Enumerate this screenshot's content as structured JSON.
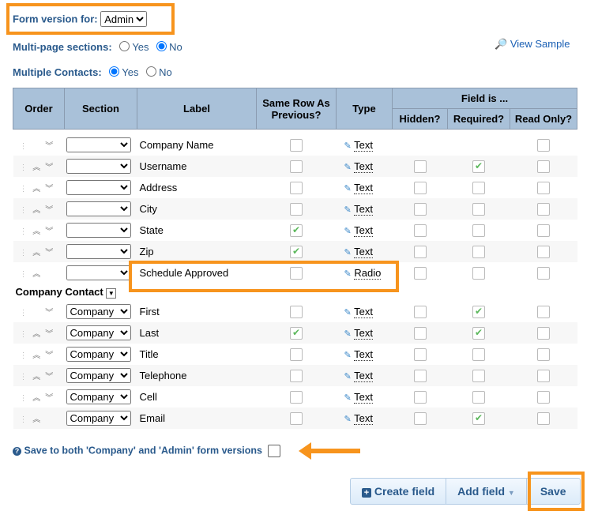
{
  "form_version": {
    "label": "Form version for:",
    "value": "Admin"
  },
  "multi_page": {
    "label": "Multi-page sections:",
    "options": [
      "Yes",
      "No"
    ],
    "selected": "No"
  },
  "multi_contacts": {
    "label": "Multiple Contacts:",
    "options": [
      "Yes",
      "No"
    ],
    "selected": "Yes"
  },
  "view_sample": "View Sample",
  "headers": {
    "order": "Order",
    "section": "Section",
    "label": "Label",
    "same_row": "Same Row As Previous?",
    "type": "Type",
    "field_is": "Field is ...",
    "hidden": "Hidden?",
    "required": "Required?",
    "read_only": "Read Only?"
  },
  "rows": [
    {
      "section": "",
      "label": "Company Name",
      "type": "Text",
      "same": false,
      "hidden": null,
      "required": null,
      "readonly": false,
      "up": false,
      "down": true
    },
    {
      "section": "",
      "label": "Username",
      "type": "Text",
      "same": false,
      "hidden": false,
      "required": true,
      "readonly": false,
      "up": true,
      "down": true
    },
    {
      "section": "",
      "label": "Address",
      "type": "Text",
      "same": false,
      "hidden": false,
      "required": false,
      "readonly": false,
      "up": true,
      "down": true
    },
    {
      "section": "",
      "label": "City",
      "type": "Text",
      "same": false,
      "hidden": false,
      "required": false,
      "readonly": false,
      "up": true,
      "down": true
    },
    {
      "section": "",
      "label": "State",
      "type": "Text",
      "same": true,
      "hidden": false,
      "required": false,
      "readonly": false,
      "up": true,
      "down": true
    },
    {
      "section": "",
      "label": "Zip",
      "type": "Text",
      "same": true,
      "hidden": false,
      "required": false,
      "readonly": false,
      "up": true,
      "down": true
    },
    {
      "section": "",
      "label": "Schedule Approved",
      "type": "Radio",
      "same": false,
      "hidden": false,
      "required": false,
      "readonly": false,
      "up": true,
      "down": false
    }
  ],
  "section_header": "Company Contact",
  "contact_rows": [
    {
      "section": "Company",
      "label": "First",
      "type": "Text",
      "same": false,
      "hidden": false,
      "required": true,
      "readonly": false,
      "up": false,
      "down": true
    },
    {
      "section": "Company",
      "label": "Last",
      "type": "Text",
      "same": true,
      "hidden": false,
      "required": true,
      "readonly": false,
      "up": true,
      "down": true
    },
    {
      "section": "Company",
      "label": "Title",
      "type": "Text",
      "same": false,
      "hidden": false,
      "required": false,
      "readonly": false,
      "up": true,
      "down": true
    },
    {
      "section": "Company",
      "label": "Telephone",
      "type": "Text",
      "same": false,
      "hidden": false,
      "required": false,
      "readonly": false,
      "up": true,
      "down": true
    },
    {
      "section": "Company",
      "label": "Cell",
      "type": "Text",
      "same": false,
      "hidden": false,
      "required": false,
      "readonly": false,
      "up": true,
      "down": true
    },
    {
      "section": "Company",
      "label": "Email",
      "type": "Text",
      "same": false,
      "hidden": false,
      "required": true,
      "readonly": false,
      "up": true,
      "down": false
    }
  ],
  "save_both": "Save to both 'Company' and 'Admin' form versions",
  "buttons": {
    "create": "Create field",
    "add": "Add field",
    "save": "Save"
  },
  "colors": {
    "highlight": "#f7941d",
    "header": "#a9c1d9",
    "label": "#2a5a8c"
  }
}
